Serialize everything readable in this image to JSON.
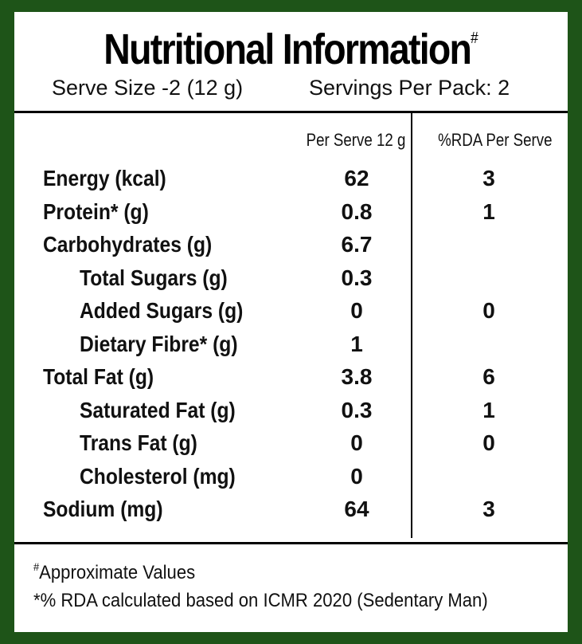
{
  "title": "Nutritional Information",
  "title_mark": "#",
  "serve_size": "Serve Size -2 (12 g)",
  "servings_per_pack": "Servings Per Pack: 2",
  "columns": {
    "per_serve": "Per Serve 12 g",
    "rda": "%RDA Per Serve"
  },
  "rows": [
    {
      "label": "Energy (kcal)",
      "per_serve": "62",
      "rda": "3",
      "indent": false
    },
    {
      "label": "Protein* (g)",
      "per_serve": "0.8",
      "rda": "1",
      "indent": false
    },
    {
      "label": "Carbohydrates (g)",
      "per_serve": "6.7",
      "rda": "",
      "indent": false
    },
    {
      "label": "Total Sugars (g)",
      "per_serve": "0.3",
      "rda": "",
      "indent": true
    },
    {
      "label": "Added Sugars (g)",
      "per_serve": "0",
      "rda": "0",
      "indent": true
    },
    {
      "label": "Dietary Fibre* (g)",
      "per_serve": "1",
      "rda": "",
      "indent": true
    },
    {
      "label": "Total Fat (g)",
      "per_serve": "3.8",
      "rda": "6",
      "indent": false
    },
    {
      "label": "Saturated Fat (g)",
      "per_serve": "0.3",
      "rda": "1",
      "indent": true
    },
    {
      "label": "Trans Fat (g)",
      "per_serve": "0",
      "rda": "0",
      "indent": true
    },
    {
      "label": "Cholesterol (mg)",
      "per_serve": "0",
      "rda": "",
      "indent": true
    },
    {
      "label": "Sodium (mg)",
      "per_serve": "64",
      "rda": "3",
      "indent": false
    }
  ],
  "footnotes": {
    "mark": "#",
    "approx": "Approximate Values",
    "rda_note": "*% RDA calculated based on ICMR 2020 (Sedentary Man)"
  },
  "colors": {
    "border": "#1e5418",
    "panel": "#ffffff",
    "text": "#111111"
  }
}
